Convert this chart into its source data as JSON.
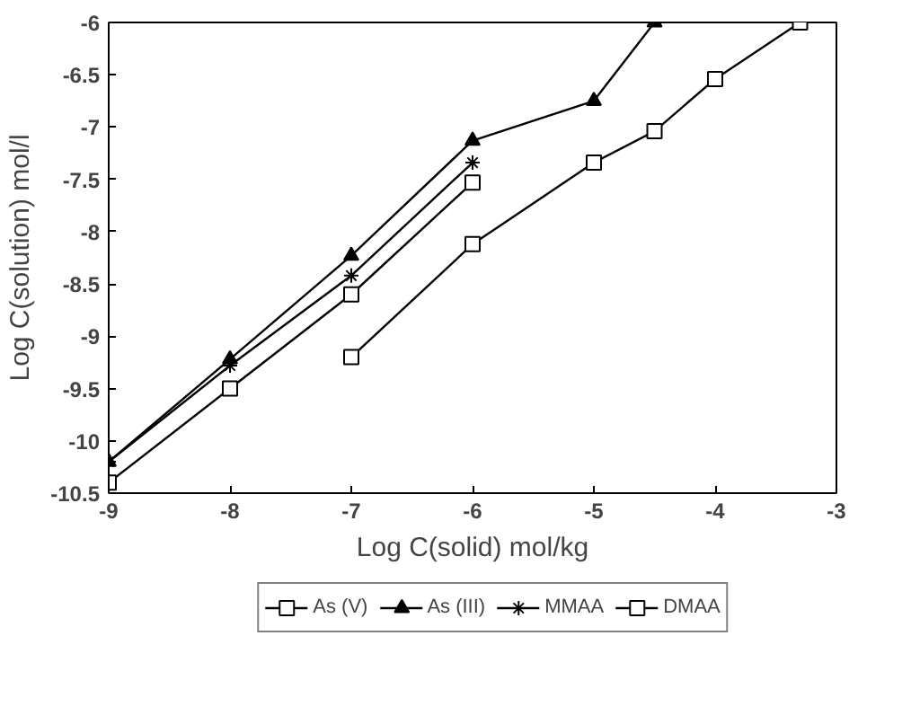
{
  "chart_data": {
    "type": "line",
    "xlabel": "Log C(solid) mol/kg",
    "ylabel": "Log C(solution) mol/l",
    "xlim": [
      -9,
      -3
    ],
    "xticks": [
      -9,
      -8,
      -7,
      -6,
      -5,
      -4,
      -3
    ],
    "ylim": [
      -10.5,
      -6
    ],
    "yticks": [
      -10.5,
      -10,
      -9.5,
      -9,
      -8.5,
      -8,
      -7.5,
      -7,
      -6.5,
      -6
    ],
    "grid": false,
    "legend": "bottom",
    "line_style": "solid",
    "series": [
      {
        "name": "As (V)",
        "color": "#000000",
        "marker": "square",
        "x": [
          -7,
          -6,
          -5,
          -4.5,
          -4,
          -3.3
        ],
        "values": [
          -9.2,
          -8.12,
          -7.34,
          -7.04,
          -6.54,
          -6.0
        ]
      },
      {
        "name": "As (III)",
        "color": "#000000",
        "marker": "triangle",
        "x": [
          -9,
          -8,
          -7,
          -6,
          -5,
          -4.5
        ],
        "values": [
          -10.2,
          -9.22,
          -8.23,
          -7.13,
          -6.75,
          -6.0
        ]
      },
      {
        "name": "MMAA",
        "color": "#000000",
        "marker": "cross",
        "x": [
          -9,
          -8,
          -7,
          -6
        ],
        "values": [
          -10.2,
          -9.28,
          -8.42,
          -7.34
        ]
      },
      {
        "name": "DMAA",
        "color": "#000000",
        "marker": "square",
        "x": [
          -9,
          -8,
          -7,
          -6
        ],
        "values": [
          -10.4,
          -9.5,
          -8.6,
          -7.53
        ]
      }
    ]
  }
}
